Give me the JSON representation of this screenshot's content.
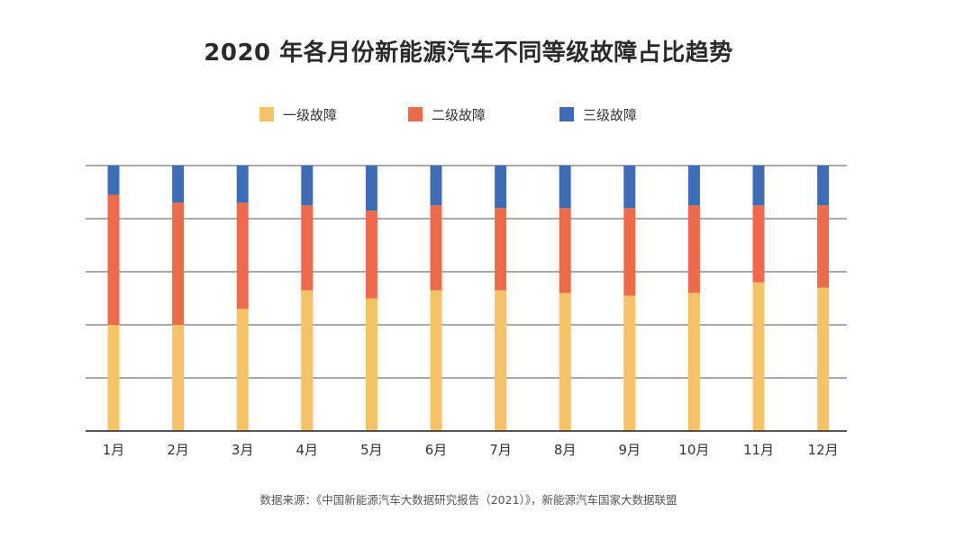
{
  "colors": {
    "level1": "#F5C266",
    "level2": "#EE6A48",
    "level3": "#3C6DB6",
    "grid": "#555555",
    "axis": "#222222",
    "tick_text": "#333333"
  },
  "chart_data": {
    "type": "bar",
    "stacked": true,
    "percent": true,
    "title": "2020 年各月份新能源汽车不同等级故障占比趋势",
    "categories": [
      "1月",
      "2月",
      "3月",
      "4月",
      "5月",
      "6月",
      "7月",
      "8月",
      "9月",
      "10月",
      "11月",
      "12月"
    ],
    "series": [
      {
        "name": "一级故障",
        "color_key": "level1",
        "values": [
          40,
          40,
          46,
          53,
          50,
          53,
          53,
          52,
          51,
          52,
          56,
          54
        ]
      },
      {
        "name": "二级故障",
        "color_key": "level2",
        "values": [
          49,
          46,
          40,
          32,
          33,
          32,
          31,
          32,
          33,
          33,
          29,
          31
        ]
      },
      {
        "name": "三级故障",
        "color_key": "level3",
        "values": [
          11,
          14,
          14,
          15,
          17,
          15,
          16,
          16,
          16,
          15,
          15,
          15
        ]
      }
    ],
    "ylim": [
      0,
      100
    ],
    "gridlines": [
      0,
      20,
      40,
      60,
      80,
      100
    ],
    "grid": true,
    "legend_position": "top",
    "xlabel": "",
    "ylabel": ""
  },
  "source_note": "数据来源：《中国新能源汽车大数据研究报告（2021）》，新能源汽车国家大数据联盟"
}
